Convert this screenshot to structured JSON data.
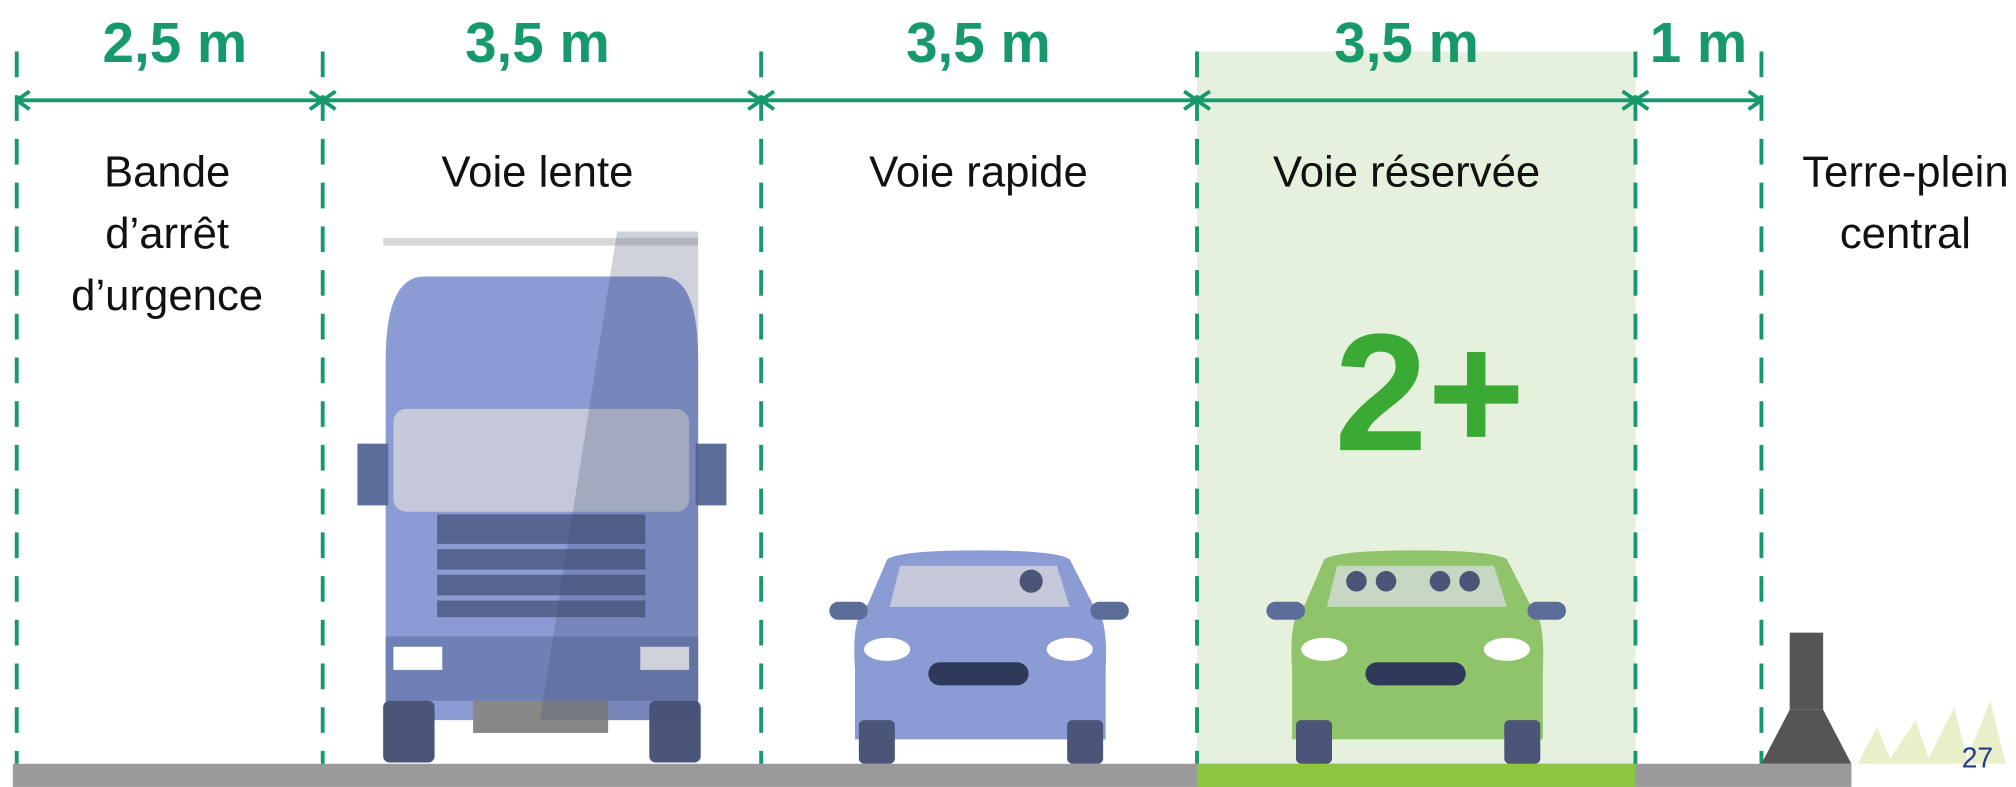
{
  "lanes": [
    {
      "width": "2,5 m",
      "label": [
        "Bande",
        "d’arrêt",
        "d’urgence"
      ]
    },
    {
      "width": "3,5 m",
      "label": [
        "Voie lente"
      ]
    },
    {
      "width": "3,5 m",
      "label": [
        "Voie rapide"
      ]
    },
    {
      "width": "3,5 m",
      "label": [
        "Voie réservée"
      ]
    },
    {
      "width": "1 m",
      "label": []
    }
  ],
  "median": {
    "label": [
      "Terre-plein",
      "central"
    ]
  },
  "badge": "2+",
  "page_number": "27"
}
